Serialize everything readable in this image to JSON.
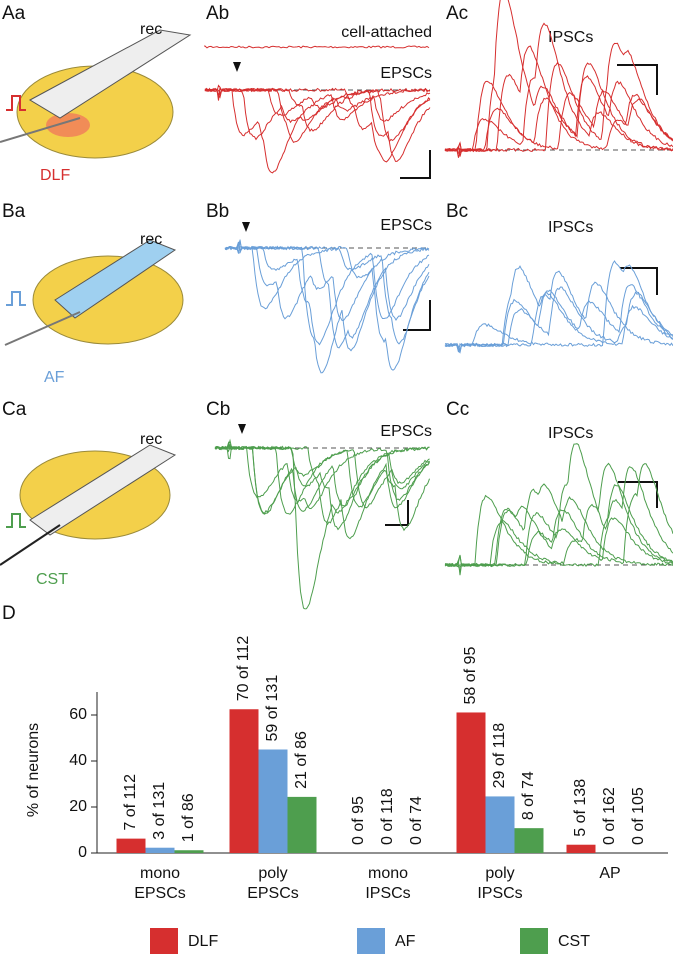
{
  "panel_labels": [
    "Aa",
    "Ab",
    "Ac",
    "Ba",
    "Bb",
    "Bc",
    "Ca",
    "Cb",
    "Cc",
    "D"
  ],
  "annotations": [
    "rec",
    "DLF",
    "cell-attached",
    "EPSCs",
    "IPSCs",
    "rec",
    "AF",
    "EPSCs",
    "IPSCs",
    "rec",
    "CST",
    "EPSCs",
    "IPSCs"
  ],
  "chart_data": {
    "type": "bar",
    "ylabel": "% of neurons",
    "categories": [
      [
        "mono",
        "EPSCs"
      ],
      [
        "poly",
        "EPSCs"
      ],
      [
        "mono",
        "IPSCs"
      ],
      [
        "poly",
        "IPSCs"
      ],
      [
        "AP"
      ]
    ],
    "ylim": [
      0,
      70
    ],
    "yticks": [
      0,
      20,
      40,
      60
    ],
    "series": [
      {
        "name": "DLF",
        "color": "#d62f2f",
        "values": [
          6.25,
          62.5,
          0,
          61.1,
          3.6
        ],
        "bar_labels": [
          "7 of 112",
          "70 of 112",
          "0 of 95",
          "58 of 95",
          "5 of 138"
        ]
      },
      {
        "name": "AF",
        "color": "#6a9fd8",
        "values": [
          2.3,
          45,
          0,
          24.6,
          0
        ],
        "bar_labels": [
          "3 of 131",
          "59 of 131",
          "0 of 118",
          "29 of 118",
          "0 of 162"
        ]
      },
      {
        "name": "CST",
        "color": "#4e9e4e",
        "values": [
          1.2,
          24.4,
          0,
          10.8,
          0
        ],
        "bar_labels": [
          "1 of 86",
          "21 of 86",
          "0 of 74",
          "8 of 74",
          "0 of 105"
        ]
      }
    ]
  }
}
